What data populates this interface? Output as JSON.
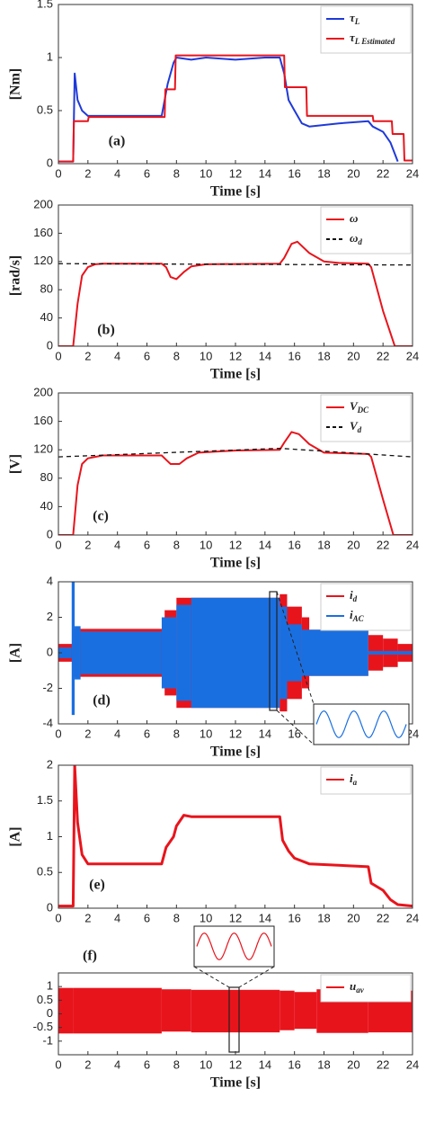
{
  "chart_data": [
    {
      "type": "line",
      "label": "(a)",
      "xlabel": "Time [s]",
      "ylabel": "[Nm]",
      "xlim": [
        0,
        24
      ],
      "xticks": [
        0,
        2,
        4,
        6,
        8,
        10,
        12,
        14,
        16,
        18,
        20,
        22,
        24
      ],
      "ylim": [
        0,
        1.5
      ],
      "yticks": [
        0,
        0.5,
        1,
        1.5
      ],
      "legend": "upper right",
      "series": [
        {
          "name": "τ",
          "name_sub": "L",
          "color": "#1f3ad8",
          "x": [
            0,
            1,
            1.1,
            1.3,
            1.6,
            2,
            4,
            6,
            7,
            7.4,
            7.8,
            8,
            9,
            10,
            12,
            14,
            15,
            15.3,
            15.6,
            16,
            16.5,
            17,
            19,
            21,
            21.3,
            22,
            22.5,
            23
          ],
          "values": [
            0.02,
            0.02,
            0.85,
            0.6,
            0.5,
            0.45,
            0.45,
            0.45,
            0.45,
            0.75,
            0.95,
            1.0,
            0.98,
            1.0,
            0.98,
            1.0,
            1.0,
            0.85,
            0.6,
            0.5,
            0.38,
            0.35,
            0.38,
            0.4,
            0.35,
            0.3,
            0.2,
            0.02
          ]
        },
        {
          "name": "τ",
          "name_sub": "L Estimated",
          "color": "#e8141c",
          "x": [
            0,
            1,
            1.05,
            2,
            2.05,
            7.2,
            7.25,
            7.9,
            7.95,
            15.3,
            15.35,
            16.8,
            16.85,
            21.3,
            21.35,
            22.6,
            22.65,
            23.4,
            23.45,
            24
          ],
          "values": [
            0.02,
            0.02,
            0.4,
            0.4,
            0.44,
            0.44,
            0.7,
            0.7,
            1.02,
            1.02,
            0.72,
            0.72,
            0.45,
            0.45,
            0.4,
            0.4,
            0.28,
            0.28,
            0.03,
            0.03
          ]
        }
      ]
    },
    {
      "type": "line",
      "label": "(b)",
      "xlabel": "Time [s]",
      "ylabel": "[rad/s]",
      "xlim": [
        0,
        24
      ],
      "xticks": [
        0,
        2,
        4,
        6,
        8,
        10,
        12,
        14,
        16,
        18,
        20,
        22,
        24
      ],
      "ylim": [
        0,
        200
      ],
      "yticks": [
        0,
        40,
        80,
        120,
        160,
        200
      ],
      "legend": "upper right",
      "series": [
        {
          "name": "ω",
          "color": "#e8141c",
          "x": [
            0,
            1,
            1.3,
            1.6,
            2,
            2.5,
            3,
            7,
            7.3,
            7.6,
            8,
            8.5,
            9,
            10,
            15,
            15.3,
            15.8,
            16.2,
            17,
            18,
            19,
            21,
            21.2,
            22,
            22.8,
            24
          ],
          "values": [
            0,
            0,
            60,
            100,
            112,
            116,
            117,
            117,
            112,
            98,
            95,
            105,
            113,
            116,
            117,
            125,
            145,
            148,
            132,
            120,
            118,
            117,
            112,
            50,
            0,
            0
          ]
        },
        {
          "name": "ω",
          "name_sub": "d",
          "color": "#111111",
          "dash": true,
          "x": [
            0,
            24
          ],
          "values": [
            117,
            115
          ]
        }
      ]
    },
    {
      "type": "line",
      "label": "(c)",
      "xlabel": "Time [s]",
      "ylabel": "[V]",
      "xlim": [
        0,
        24
      ],
      "xticks": [
        0,
        2,
        4,
        6,
        8,
        10,
        12,
        14,
        16,
        18,
        20,
        22,
        24
      ],
      "ylim": [
        0,
        200
      ],
      "yticks": [
        0,
        40,
        80,
        120,
        160,
        200
      ],
      "legend": "upper right",
      "series": [
        {
          "name": "V",
          "name_sub": "DC",
          "color": "#e8141c",
          "x": [
            0,
            1,
            1.3,
            1.6,
            2,
            3,
            7,
            7.3,
            7.6,
            8.2,
            8.7,
            9.5,
            12,
            15,
            15.3,
            15.8,
            16.3,
            17,
            18,
            21,
            21.2,
            22,
            22.7,
            24
          ],
          "values": [
            0,
            0,
            70,
            100,
            108,
            112,
            112,
            106,
            100,
            100,
            108,
            116,
            119,
            120,
            130,
            145,
            142,
            128,
            116,
            114,
            110,
            50,
            0,
            0
          ]
        },
        {
          "name": "V",
          "name_sub": "d",
          "color": "#111111",
          "dash": true,
          "x": [
            0,
            15,
            24
          ],
          "values": [
            110,
            122,
            110
          ]
        }
      ]
    },
    {
      "type": "band",
      "label": "(d)",
      "xlabel": "Time [s]",
      "ylabel": "[A]",
      "xlim": [
        0,
        24
      ],
      "xticks": [
        0,
        2,
        4,
        6,
        8,
        10,
        12,
        14,
        16,
        18,
        20,
        22,
        24
      ],
      "ylim": [
        -4,
        4
      ],
      "yticks": [
        -4,
        -2,
        0,
        2,
        4
      ],
      "legend": "upper right",
      "series": [
        {
          "name": "i",
          "name_sub": "d",
          "color": "#e8141c",
          "bins": [
            0,
            1,
            7.2,
            8,
            15,
            15.5,
            16.5,
            17,
            21,
            22,
            23,
            24
          ],
          "high": [
            0.5,
            1.35,
            2.4,
            3.1,
            3.3,
            2.6,
            2.0,
            1.3,
            1.0,
            0.8,
            0.5
          ],
          "low": [
            -0.5,
            -1.35,
            -2.4,
            -3.1,
            -3.3,
            -2.6,
            -2.0,
            -1.3,
            -1.0,
            -0.8,
            -0.5
          ]
        },
        {
          "name": "i",
          "name_sub": "AC",
          "color": "#1a6fe0",
          "bins": [
            0,
            0.9,
            1.1,
            1.5,
            7,
            8,
            9,
            15,
            15.5,
            16.5,
            21,
            24
          ],
          "high": [
            0.3,
            4,
            1.5,
            1.2,
            2.0,
            2.7,
            3.1,
            2.6,
            1.6,
            1.3,
            0.1
          ],
          "low": [
            -0.3,
            -3.5,
            -1.5,
            -1.2,
            -2.0,
            -2.7,
            -3.1,
            -2.6,
            -1.6,
            -1.3,
            -0.1
          ]
        }
      ]
    },
    {
      "type": "line",
      "label": "(e)",
      "xlabel": "Time [s]",
      "ylabel": "[A]",
      "xlim": [
        0,
        24
      ],
      "xticks": [
        0,
        2,
        4,
        6,
        8,
        10,
        12,
        14,
        16,
        18,
        20,
        22,
        24
      ],
      "ylim": [
        0,
        2
      ],
      "yticks": [
        0,
        0.5,
        1,
        1.5,
        2
      ],
      "legend": "upper right",
      "series": [
        {
          "name": "i",
          "name_sub": "a",
          "color": "#e8141c",
          "x": [
            0,
            1,
            1.1,
            1.3,
            1.6,
            2,
            7,
            7.3,
            7.8,
            8,
            8.5,
            9,
            15,
            15.2,
            15.6,
            16,
            17,
            21,
            21.2,
            22,
            22.5,
            23,
            24
          ],
          "values": [
            0.03,
            0.03,
            2.0,
            1.2,
            0.75,
            0.62,
            0.62,
            0.85,
            1.0,
            1.15,
            1.3,
            1.28,
            1.28,
            0.95,
            0.8,
            0.7,
            0.62,
            0.58,
            0.35,
            0.25,
            0.12,
            0.05,
            0.03
          ]
        }
      ]
    },
    {
      "type": "band",
      "label": "(f)",
      "xlabel": "Time [s]",
      "xlim": [
        0,
        24
      ],
      "xticks": [
        0,
        2,
        4,
        6,
        8,
        10,
        12,
        14,
        16,
        18,
        20,
        22,
        24
      ],
      "ylim": [
        -1.5,
        1.5
      ],
      "yticks": [
        -1,
        -0.5,
        0,
        0.5,
        1
      ],
      "legend": "upper right",
      "series": [
        {
          "name": "u",
          "name_sub": "av",
          "color": "#e8141c",
          "bins": [
            0,
            1,
            7,
            9,
            15,
            16,
            17.5,
            21,
            24
          ],
          "high": [
            0.95,
            0.95,
            0.9,
            0.88,
            0.85,
            0.8,
            0.9,
            0.85
          ],
          "low": [
            -0.72,
            -0.72,
            -0.65,
            -0.68,
            -0.6,
            -0.55,
            -0.7,
            -0.68
          ]
        }
      ]
    }
  ]
}
